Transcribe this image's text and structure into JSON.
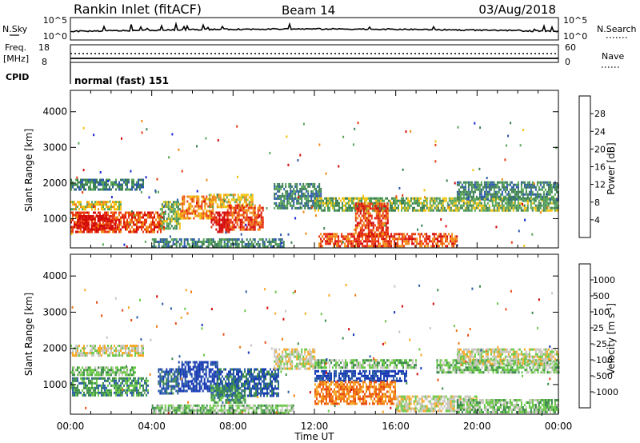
{
  "header": {
    "station": "Rankin Inlet (fitACF)",
    "beam": "Beam 14",
    "date": "03/Aug/2018"
  },
  "strip_panels": {
    "nsky_label": "N.Sky",
    "nsky_ticks": [
      "10^5",
      "10^0"
    ],
    "nsearch_label": "N.Search",
    "nsearch_ticks": [
      "10^5",
      "10^0"
    ],
    "freq_label": "Freq.",
    "freq_unit": "[MHz]",
    "freq_ticks": [
      "18",
      "8"
    ],
    "nave_label": "Nave",
    "nave_ticks": [
      "60",
      "0"
    ],
    "cpid_label": "CPID",
    "cpid_value": "normal (fast) 151"
  },
  "colors": {
    "power_scale": [
      "#1a2bd6",
      "#2d5aa8",
      "#3d7f55",
      "#58a658",
      "#f2c20e",
      "#f08a14",
      "#ea3c12",
      "#d40a0a"
    ],
    "velocity_scale": [
      "#1638b4",
      "#2c5fa4",
      "#3e8c4c",
      "#6cc94a",
      "#c8c6be",
      "#f7a825",
      "#f07a14",
      "#e84a12",
      "#d40a0a"
    ]
  },
  "chart_data": [
    {
      "type": "heatmap",
      "name_hint": "power",
      "xlabel": "",
      "ylabel": "Slant Range [km]",
      "x_ticks": [
        "00:00",
        "04:00",
        "08:00",
        "12:00",
        "16:00",
        "20:00",
        "00:00"
      ],
      "y_ticks": [
        1000,
        2000,
        3000,
        4000
      ],
      "xlim_hours": [
        0,
        24
      ],
      "ylim_km": [
        180,
        4600
      ],
      "colorbar_label": "Power [dB]",
      "colorbar_ticks": [
        4,
        8,
        12,
        16,
        20,
        24,
        28
      ],
      "regions": [
        {
          "t": [
            0.0,
            3.6
          ],
          "r": [
            1850,
            2120
          ],
          "level": 2
        },
        {
          "t": [
            0.0,
            4.6
          ],
          "r": [
            650,
            1200
          ],
          "level": 6
        },
        {
          "t": [
            0.3,
            2.2
          ],
          "r": [
            700,
            1100
          ],
          "level": 7
        },
        {
          "t": [
            0.0,
            2.5
          ],
          "r": [
            1250,
            1500
          ],
          "level": 4
        },
        {
          "t": [
            4.4,
            5.4
          ],
          "r": [
            700,
            1500
          ],
          "level": 3
        },
        {
          "t": [
            5.4,
            7.0
          ],
          "r": [
            1000,
            1650
          ],
          "level": 5
        },
        {
          "t": [
            6.8,
            9.0
          ],
          "r": [
            1350,
            1700
          ],
          "level": 4
        },
        {
          "t": [
            6.9,
            7.8
          ],
          "r": [
            600,
            1200
          ],
          "level": 7
        },
        {
          "t": [
            7.7,
            9.5
          ],
          "r": [
            700,
            1400
          ],
          "level": 6
        },
        {
          "t": [
            10.0,
            12.3
          ],
          "r": [
            1300,
            2000
          ],
          "level": 2
        },
        {
          "t": [
            12.0,
            17.5
          ],
          "r": [
            1200,
            1600
          ],
          "level": 3
        },
        {
          "t": [
            14.0,
            15.6
          ],
          "r": [
            550,
            1450
          ],
          "level": 6
        },
        {
          "t": [
            12.2,
            19.0
          ],
          "r": [
            250,
            600
          ],
          "level": 6
        },
        {
          "t": [
            17.5,
            24.0
          ],
          "r": [
            1250,
            1600
          ],
          "level": 3
        },
        {
          "t": [
            19.0,
            24.0
          ],
          "r": [
            1550,
            2050
          ],
          "level": 2
        },
        {
          "t": [
            4.0,
            10.5
          ],
          "r": [
            200,
            450
          ],
          "level": 2
        }
      ]
    },
    {
      "type": "heatmap",
      "name_hint": "velocity",
      "xlabel": "Time UT",
      "ylabel": "Slant Range [km]",
      "x_ticks": [
        "00:00",
        "04:00",
        "08:00",
        "12:00",
        "16:00",
        "20:00",
        "00:00"
      ],
      "y_ticks": [
        1000,
        2000,
        3000,
        4000
      ],
      "xlim_hours": [
        0,
        24
      ],
      "ylim_km": [
        180,
        4600
      ],
      "colorbar_label": "Velocity [m s-1]",
      "colorbar_ticks": [
        "1000",
        "500",
        "100",
        "25",
        "-25",
        "-100",
        "-500",
        "-1000"
      ],
      "regions": [
        {
          "t": [
            0.0,
            3.6
          ],
          "r": [
            1800,
            2100
          ],
          "level": 4
        },
        {
          "t": [
            0.0,
            3.8
          ],
          "r": [
            700,
            1200
          ],
          "level": 2
        },
        {
          "t": [
            0.0,
            3.2
          ],
          "r": [
            1250,
            1500
          ],
          "level": 3
        },
        {
          "t": [
            4.3,
            5.3
          ],
          "r": [
            750,
            1450
          ],
          "level": 1
        },
        {
          "t": [
            5.3,
            7.2
          ],
          "r": [
            800,
            1650
          ],
          "level": 0
        },
        {
          "t": [
            7.2,
            10.2
          ],
          "r": [
            700,
            1450
          ],
          "level": 1
        },
        {
          "t": [
            6.9,
            8.6
          ],
          "r": [
            500,
            1000
          ],
          "level": 2
        },
        {
          "t": [
            10.0,
            12.0
          ],
          "r": [
            1450,
            2000
          ],
          "level": 4
        },
        {
          "t": [
            12.0,
            17.0
          ],
          "r": [
            1450,
            1700
          ],
          "level": 3
        },
        {
          "t": [
            12.0,
            16.5
          ],
          "r": [
            1100,
            1400
          ],
          "level": 0
        },
        {
          "t": [
            12.0,
            16.0
          ],
          "r": [
            450,
            1100
          ],
          "level": 6
        },
        {
          "t": [
            16.0,
            20.0
          ],
          "r": [
            300,
            700
          ],
          "level": 4
        },
        {
          "t": [
            18.0,
            24.0
          ],
          "r": [
            1350,
            1700
          ],
          "level": 3
        },
        {
          "t": [
            19.0,
            24.0
          ],
          "r": [
            1600,
            2000
          ],
          "level": 4
        },
        {
          "t": [
            19.0,
            24.0
          ],
          "r": [
            250,
            600
          ],
          "level": 3
        },
        {
          "t": [
            4.0,
            11.0
          ],
          "r": [
            200,
            450
          ],
          "level": 3
        }
      ]
    }
  ]
}
